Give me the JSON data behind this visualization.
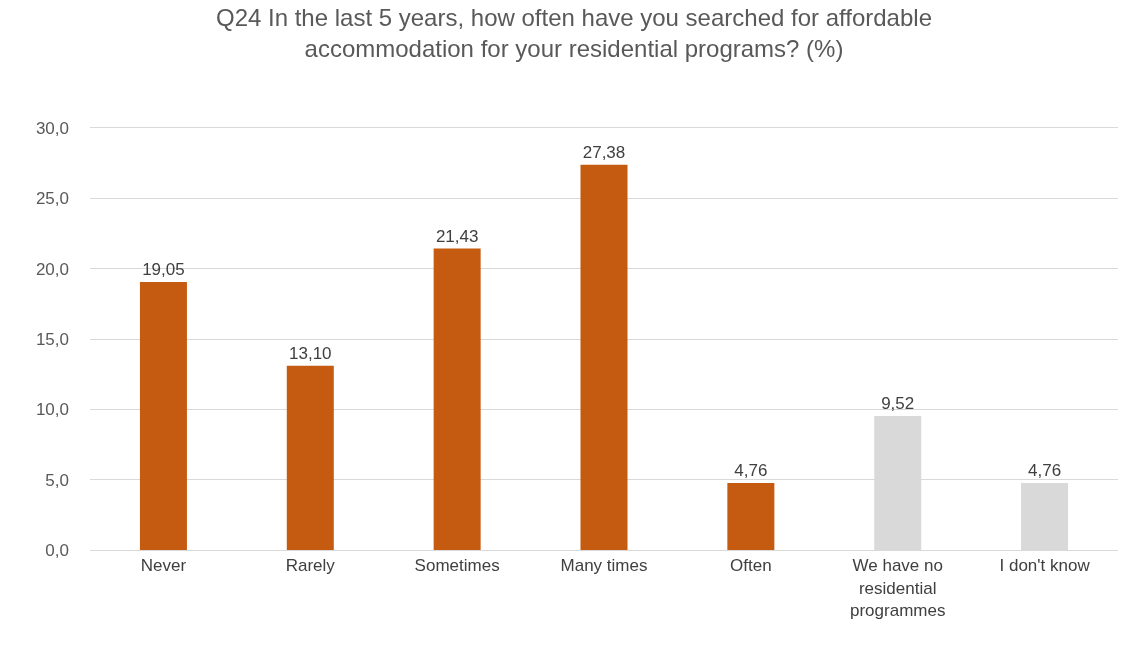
{
  "chart_data": {
    "type": "bar",
    "title": "Q24 In the last 5 years, how often have you searched for affordable accommodation for your residential programs? (%)",
    "categories": [
      "Never",
      "Rarely",
      "Sometimes",
      "Many times",
      "Often",
      "We have no residential programmes",
      "I don't know"
    ],
    "values": [
      19.05,
      13.1,
      21.43,
      27.38,
      4.76,
      9.52,
      4.76
    ],
    "colors": [
      "#c55a11",
      "#c55a11",
      "#c55a11",
      "#c55a11",
      "#c55a11",
      "#d9d9d9",
      "#d9d9d9"
    ],
    "value_labels": [
      "19,05",
      "13,10",
      "21,43",
      "27,38",
      "4,76",
      "9,52",
      "4,76"
    ],
    "ylim": [
      0,
      30
    ],
    "yticks": [
      {
        "value": 0,
        "label": "0,0"
      },
      {
        "value": 5,
        "label": "5,0"
      },
      {
        "value": 10,
        "label": "10,0"
      },
      {
        "value": 15,
        "label": "15,0"
      },
      {
        "value": 20,
        "label": "20,0"
      },
      {
        "value": 25,
        "label": "25,0"
      },
      {
        "value": 30,
        "label": "30,0"
      }
    ],
    "grid": "y"
  }
}
